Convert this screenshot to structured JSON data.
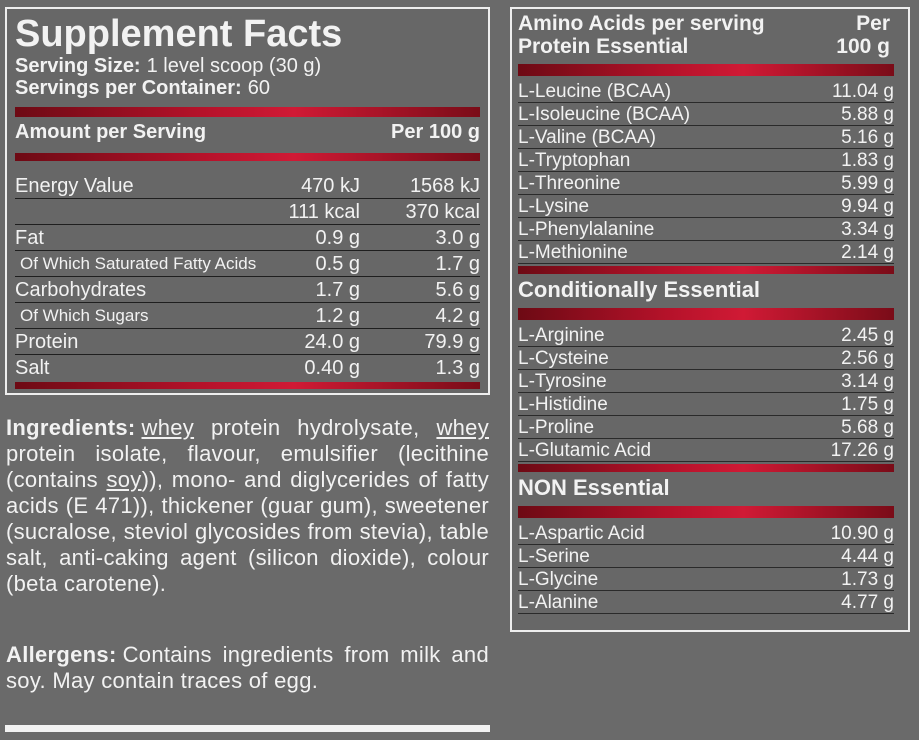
{
  "supplement_facts": {
    "title": "Supplement Facts",
    "serving_size": {
      "label": "Serving Size:",
      "value": "1 level scoop (30 g)"
    },
    "servings_per_container": {
      "label": "Servings per Container:",
      "value": "60"
    },
    "columns": [
      "Amount per Serving",
      "Per 100 g"
    ],
    "rows": [
      {
        "label": "Energy Value",
        "serving": "470 kJ",
        "per_100g": "1568 kJ"
      },
      {
        "serving": "111 kcal",
        "per_100g": "370 kcal"
      },
      {
        "label": "Fat",
        "serving": "0.9 g",
        "per_100g": "3.0 g"
      },
      {
        "label": "Of Which Saturated Fatty Acids",
        "serving": "0.5 g",
        "per_100g": "1.7 g",
        "indent": true
      },
      {
        "label": "Carbohydrates",
        "serving": "1.7 g",
        "per_100g": "5.6 g"
      },
      {
        "label": "Of Which Sugars",
        "serving": "1.2 g",
        "per_100g": "4.2 g",
        "indent": true
      },
      {
        "label": "Protein",
        "serving": "24.0 g",
        "per_100g": "79.9 g"
      },
      {
        "label": "Salt",
        "serving": "0.40 g",
        "per_100g": "1.3 g"
      }
    ]
  },
  "ingredients": {
    "label": "Ingredients:",
    "segments": [
      {
        "text": "whey",
        "underline": true
      },
      {
        "text": " protein hydrolysate, "
      },
      {
        "text": "whey",
        "underline": true
      },
      {
        "text": " protein isolate, flavour, emulsifier (lecithine (contains "
      },
      {
        "text": "soy",
        "underline": true
      },
      {
        "text": ")), mono- and diglycerides of fatty acids (E 471)), thickener (guar gum), sweetener (sucralose, steviol glycosides from stevia), table salt, anti-caking agent (silicon dioxide), colour (beta carotene)."
      }
    ]
  },
  "allergens": {
    "label": "Allergens:",
    "text": "Contains ingredients from milk and soy. May contain traces of egg."
  },
  "amino_acids": {
    "header": [
      "Amino Acids per serving",
      "Protein Essential"
    ],
    "column": [
      "Per",
      "100 g"
    ],
    "sections": [
      {
        "items": [
          [
            "L-Leucine (BCAA)",
            "11.04 g"
          ],
          [
            "L-Isoleucine (BCAA)",
            "5.88 g"
          ],
          [
            "L-Valine (BCAA)",
            "5.16 g"
          ],
          [
            "L-Tryptophan",
            "1.83 g"
          ],
          [
            "L-Threonine",
            "5.99 g"
          ],
          [
            "L-Lysine",
            "9.94 g"
          ],
          [
            "L-Phenylalanine",
            "3.34 g"
          ],
          [
            "L-Methionine",
            "2.14 g"
          ]
        ]
      },
      {
        "title": "Conditionally Essential",
        "items": [
          [
            "L-Arginine",
            "2.45 g"
          ],
          [
            "L-Cysteine",
            "2.56 g"
          ],
          [
            "L-Tyrosine",
            "3.14 g"
          ],
          [
            "L-Histidine",
            "1.75 g"
          ],
          [
            "L-Proline",
            "5.68 g"
          ],
          [
            "L-Glutamic Acid",
            "17.26 g"
          ]
        ]
      },
      {
        "title": "NON Essential",
        "items": [
          [
            "L-Aspartic Acid",
            "10.90 g"
          ],
          [
            "L-Serine",
            "4.44 g"
          ],
          [
            "L-Glycine",
            "1.73 g"
          ],
          [
            "L-Alanine",
            "4.77 g"
          ]
        ]
      }
    ]
  }
}
